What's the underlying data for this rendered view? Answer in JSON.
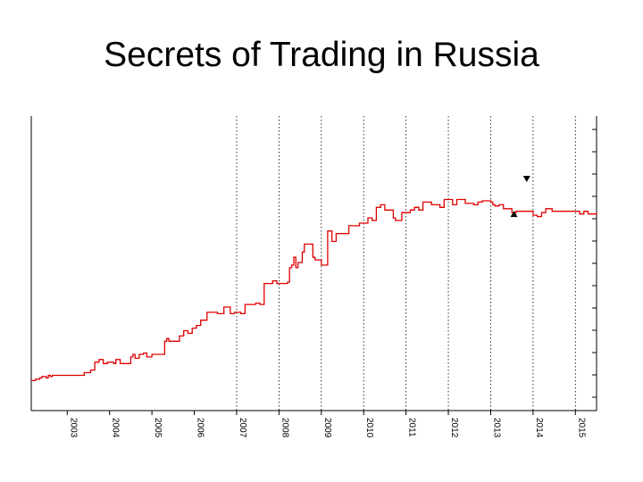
{
  "slide": {
    "title": "Secrets of Trading in Russia"
  },
  "chart_data": {
    "type": "line",
    "title": "Secrets of Trading in Russia",
    "xlabel": "",
    "ylabel": "",
    "xlim": [
      2002.15,
      2015.5
    ],
    "ylim": [
      0,
      100
    ],
    "grid": "vertical dotted lines at years 2007–2015",
    "legend": "none",
    "x_ticks": [
      "2003",
      "2004",
      "2005",
      "2006",
      "2007",
      "2008",
      "2009",
      "2010",
      "2011",
      "2012",
      "2013",
      "2014",
      "2015"
    ],
    "colors": {
      "line": "#e00000",
      "axis": "#000000",
      "grid": "#000000"
    },
    "series": [
      {
        "points": [
          [
            2002.15,
            6
          ],
          [
            2002.25,
            6.5
          ],
          [
            2002.35,
            7
          ],
          [
            2002.4,
            7.5
          ],
          [
            2002.5,
            7
          ],
          [
            2002.55,
            8
          ],
          [
            2002.6,
            7.5
          ],
          [
            2002.65,
            8
          ],
          [
            2002.8,
            8
          ],
          [
            2003.0,
            8
          ],
          [
            2003.2,
            8
          ],
          [
            2003.4,
            9
          ],
          [
            2003.55,
            10
          ],
          [
            2003.65,
            13
          ],
          [
            2003.75,
            14
          ],
          [
            2003.85,
            12.5
          ],
          [
            2003.95,
            13
          ],
          [
            2004.1,
            12.5
          ],
          [
            2004.15,
            14
          ],
          [
            2004.25,
            12.5
          ],
          [
            2004.4,
            12.5
          ],
          [
            2004.5,
            15
          ],
          [
            2004.55,
            16
          ],
          [
            2004.6,
            14.5
          ],
          [
            2004.7,
            16
          ],
          [
            2004.8,
            16.5
          ],
          [
            2004.88,
            15
          ],
          [
            2005.0,
            16
          ],
          [
            2005.1,
            16
          ],
          [
            2005.2,
            16
          ],
          [
            2005.3,
            21
          ],
          [
            2005.35,
            22
          ],
          [
            2005.4,
            21
          ],
          [
            2005.55,
            21
          ],
          [
            2005.65,
            23
          ],
          [
            2005.75,
            25
          ],
          [
            2005.85,
            24
          ],
          [
            2005.95,
            26
          ],
          [
            2006.05,
            27
          ],
          [
            2006.15,
            29
          ],
          [
            2006.3,
            32
          ],
          [
            2006.45,
            32
          ],
          [
            2006.55,
            31.5
          ],
          [
            2006.7,
            34
          ],
          [
            2006.85,
            31.5
          ],
          [
            2006.95,
            32
          ],
          [
            2007.1,
            31.5
          ],
          [
            2007.2,
            35
          ],
          [
            2007.3,
            35
          ],
          [
            2007.45,
            35.5
          ],
          [
            2007.55,
            35
          ],
          [
            2007.65,
            43
          ],
          [
            2007.75,
            43
          ],
          [
            2007.85,
            44
          ],
          [
            2007.95,
            43
          ],
          [
            2008.0,
            43
          ],
          [
            2008.1,
            43
          ],
          [
            2008.2,
            43.5
          ],
          [
            2008.25,
            49
          ],
          [
            2008.3,
            50
          ],
          [
            2008.35,
            53
          ],
          [
            2008.4,
            49
          ],
          [
            2008.45,
            51
          ],
          [
            2008.55,
            55
          ],
          [
            2008.6,
            58
          ],
          [
            2008.7,
            58
          ],
          [
            2008.8,
            53
          ],
          [
            2008.85,
            52
          ],
          [
            2008.9,
            52
          ],
          [
            2009.0,
            50
          ],
          [
            2009.1,
            50
          ],
          [
            2009.15,
            63
          ],
          [
            2009.25,
            59
          ],
          [
            2009.35,
            62
          ],
          [
            2009.5,
            62
          ],
          [
            2009.65,
            65
          ],
          [
            2009.8,
            65
          ],
          [
            2009.9,
            66
          ],
          [
            2010.0,
            66
          ],
          [
            2010.1,
            68
          ],
          [
            2010.2,
            67
          ],
          [
            2010.3,
            72
          ],
          [
            2010.4,
            73
          ],
          [
            2010.5,
            71
          ],
          [
            2010.6,
            71
          ],
          [
            2010.7,
            68
          ],
          [
            2010.75,
            67
          ],
          [
            2010.82,
            67
          ],
          [
            2010.9,
            70
          ],
          [
            2011.0,
            70
          ],
          [
            2011.1,
            71
          ],
          [
            2011.2,
            72
          ],
          [
            2011.3,
            71
          ],
          [
            2011.4,
            74
          ],
          [
            2011.5,
            74
          ],
          [
            2011.6,
            73
          ],
          [
            2011.7,
            73
          ],
          [
            2011.8,
            72
          ],
          [
            2011.9,
            75
          ],
          [
            2012.0,
            75
          ],
          [
            2012.1,
            73
          ],
          [
            2012.2,
            75
          ],
          [
            2012.3,
            75
          ],
          [
            2012.4,
            73.5
          ],
          [
            2012.5,
            73.5
          ],
          [
            2012.6,
            73
          ],
          [
            2012.7,
            74
          ],
          [
            2012.8,
            74.5
          ],
          [
            2012.9,
            74.5
          ],
          [
            2013.0,
            74
          ],
          [
            2013.05,
            73
          ],
          [
            2013.1,
            72.5
          ],
          [
            2013.2,
            73
          ],
          [
            2013.3,
            71.5
          ],
          [
            2013.4,
            71.5
          ],
          [
            2013.5,
            70
          ],
          [
            2013.6,
            70.5
          ],
          [
            2013.7,
            70.5
          ],
          [
            2013.8,
            70.5
          ],
          [
            2013.9,
            70.5
          ],
          [
            2014.0,
            69
          ],
          [
            2014.1,
            68.5
          ],
          [
            2014.2,
            70
          ],
          [
            2014.3,
            71.5
          ],
          [
            2014.45,
            70.5
          ],
          [
            2014.6,
            70.5
          ],
          [
            2014.75,
            70.5
          ],
          [
            2014.9,
            70.5
          ],
          [
            2015.0,
            70.5
          ],
          [
            2015.1,
            69.5
          ],
          [
            2015.2,
            70.5
          ],
          [
            2015.3,
            69.5
          ],
          [
            2015.4,
            69.5
          ],
          [
            2015.5,
            70
          ]
        ]
      }
    ],
    "markers": [
      {
        "shape": "triangle-up",
        "x": 2013.55,
        "y": 69
      },
      {
        "shape": "triangle-down",
        "x": 2013.85,
        "y": 83
      }
    ]
  }
}
